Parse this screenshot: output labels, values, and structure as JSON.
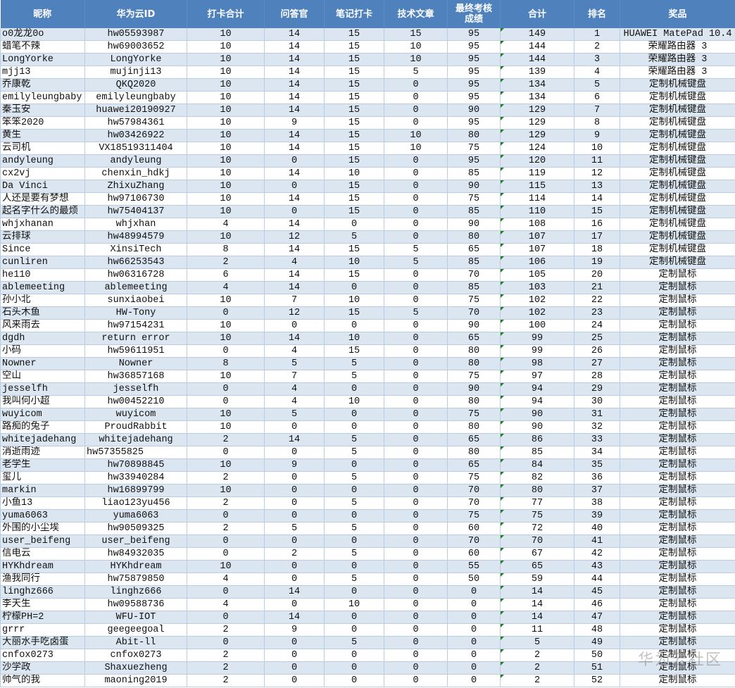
{
  "headers": [
    "昵称",
    "华为云ID",
    "打卡合计",
    "问答官",
    "笔记打卡",
    "技术文章",
    "最终考核\n成绩",
    "合计",
    "排名",
    "奖品"
  ],
  "colors": {
    "header_bg": "#4F81BD",
    "stripe": "#DCE6F1",
    "marker": "#1e7b1e"
  },
  "rows": [
    [
      "o0龙龙0o",
      "hw05593987",
      "10",
      "14",
      "15",
      "15",
      "95",
      "149",
      "1",
      "HUAWEI MatePad 10.4"
    ],
    [
      "蜡笔不辣",
      "hw69003652",
      "10",
      "14",
      "15",
      "10",
      "95",
      "144",
      "2",
      "荣耀路由器 3"
    ],
    [
      "LongYorke",
      "LongYorke",
      "10",
      "14",
      "15",
      "10",
      "95",
      "144",
      "3",
      "荣耀路由器 3"
    ],
    [
      "mjj13",
      "mujinji13",
      "10",
      "14",
      "15",
      "5",
      "95",
      "139",
      "4",
      "荣耀路由器 3"
    ],
    [
      "乔康乾",
      "QKQ2020",
      "10",
      "14",
      "15",
      "0",
      "95",
      "134",
      "5",
      "定制机械键盘"
    ],
    [
      "emilyleungbaby",
      "emilyleungbaby",
      "10",
      "14",
      "15",
      "0",
      "95",
      "134",
      "6",
      "定制机械键盘"
    ],
    [
      "秦玉安",
      "huawei20190927",
      "10",
      "14",
      "15",
      "0",
      "90",
      "129",
      "7",
      "定制机械键盘"
    ],
    [
      "笨笨2020",
      "hw57984361",
      "10",
      "9",
      "15",
      "0",
      "95",
      "129",
      "8",
      "定制机械键盘"
    ],
    [
      "黄生",
      "hw03426922",
      "10",
      "14",
      "15",
      "10",
      "80",
      "129",
      "9",
      "定制机械键盘"
    ],
    [
      "云司机",
      "VX18519311404",
      "10",
      "14",
      "15",
      "10",
      "75",
      "124",
      "10",
      "定制机械键盘"
    ],
    [
      "andyleung",
      "andyleung",
      "10",
      "0",
      "15",
      "0",
      "95",
      "120",
      "11",
      "定制机械键盘"
    ],
    [
      "cx2vj",
      "chenxin_hdkj",
      "10",
      "14",
      "10",
      "0",
      "85",
      "119",
      "12",
      "定制机械键盘"
    ],
    [
      "Da Vinci",
      "ZhixuZhang",
      "10",
      "0",
      "15",
      "0",
      "90",
      "115",
      "13",
      "定制机械键盘"
    ],
    [
      "人还是要有梦想",
      "hw97106730",
      "10",
      "14",
      "15",
      "0",
      "75",
      "114",
      "14",
      "定制机械键盘"
    ],
    [
      "起名字什么的最烦",
      "hw75404137",
      "10",
      "0",
      "15",
      "0",
      "85",
      "110",
      "15",
      "定制机械键盘"
    ],
    [
      "whjxhanan",
      "whjxhan",
      "4",
      "14",
      "0",
      "0",
      "90",
      "108",
      "16",
      "定制机械键盘"
    ],
    [
      "云排球",
      "hw48994579",
      "10",
      "12",
      "5",
      "0",
      "80",
      "107",
      "17",
      "定制机械键盘"
    ],
    [
      "Since",
      "XinsiTech",
      "8",
      "14",
      "15",
      "5",
      "65",
      "107",
      "18",
      "定制机械键盘"
    ],
    [
      "cunliren",
      "hw66253543",
      "2",
      "4",
      "10",
      "5",
      "85",
      "106",
      "19",
      "定制机械键盘"
    ],
    [
      "he110",
      "hw06316728",
      "6",
      "14",
      "15",
      "0",
      "70",
      "105",
      "20",
      "定制鼠标"
    ],
    [
      "ablemeeting",
      "ablemeeting",
      "4",
      "14",
      "0",
      "0",
      "85",
      "103",
      "21",
      "定制鼠标"
    ],
    [
      "孙小北",
      "sunxiaobei",
      "10",
      "7",
      "10",
      "0",
      "75",
      "102",
      "22",
      "定制鼠标"
    ],
    [
      "石头木鱼",
      "HW-Tony",
      "0",
      "12",
      "15",
      "5",
      "70",
      "102",
      "23",
      "定制鼠标"
    ],
    [
      "风来雨去",
      "hw97154231",
      "10",
      "0",
      "0",
      "0",
      "90",
      "100",
      "24",
      "定制鼠标"
    ],
    [
      "dgdh",
      "return error",
      "10",
      "14",
      "10",
      "0",
      "65",
      "99",
      "25",
      "定制鼠标"
    ],
    [
      "小码",
      "hw59611951",
      "0",
      "4",
      "15",
      "0",
      "80",
      "99",
      "26",
      "定制鼠标"
    ],
    [
      "Nowner",
      "Nowner",
      "8",
      "5",
      "5",
      "0",
      "80",
      "98",
      "27",
      "定制鼠标"
    ],
    [
      "空山",
      "hw36857168",
      "10",
      "7",
      "5",
      "0",
      "75",
      "97",
      "28",
      "定制鼠标"
    ],
    [
      "jesselfh",
      "jesselfh",
      "0",
      "4",
      "0",
      "0",
      "90",
      "94",
      "29",
      "定制鼠标"
    ],
    [
      "我叫何小超",
      "hw00452210",
      "0",
      "4",
      "10",
      "0",
      "80",
      "94",
      "30",
      "定制鼠标"
    ],
    [
      "wuyicom",
      "wuyicom",
      "10",
      "5",
      "0",
      "0",
      "75",
      "90",
      "31",
      "定制鼠标"
    ],
    [
      "路痴的兔子",
      "ProudRabbit",
      "10",
      "0",
      "0",
      "0",
      "80",
      "90",
      "32",
      "定制鼠标"
    ],
    [
      "whitejadehang",
      "whitejadehang",
      "2",
      "14",
      "5",
      "0",
      "65",
      "86",
      "33",
      "定制鼠标"
    ],
    [
      "消逝雨迹",
      "hw57355825",
      "0",
      "0",
      "5",
      "0",
      "80",
      "85",
      "34",
      "定制鼠标"
    ],
    [
      "老学生",
      "hw70898845",
      "10",
      "9",
      "0",
      "0",
      "65",
      "84",
      "35",
      "定制鼠标"
    ],
    [
      "玺儿",
      "hw33940284",
      "2",
      "0",
      "5",
      "0",
      "75",
      "82",
      "36",
      "定制鼠标"
    ],
    [
      "markin",
      "hw16899799",
      "10",
      "0",
      "0",
      "0",
      "70",
      "80",
      "37",
      "定制鼠标"
    ],
    [
      "小鱼13",
      "liao123yu456",
      "2",
      "0",
      "5",
      "0",
      "70",
      "77",
      "38",
      "定制鼠标"
    ],
    [
      "yuma6063",
      "yuma6063",
      "0",
      "0",
      "0",
      "0",
      "75",
      "75",
      "39",
      "定制鼠标"
    ],
    [
      "外围的小尘埃",
      "hw90509325",
      "2",
      "5",
      "5",
      "0",
      "60",
      "72",
      "40",
      "定制鼠标"
    ],
    [
      "user_beifeng",
      "user_beifeng",
      "0",
      "0",
      "0",
      "0",
      "70",
      "70",
      "41",
      "定制鼠标"
    ],
    [
      "信电云",
      "hw84932035",
      "0",
      "2",
      "5",
      "0",
      "60",
      "67",
      "42",
      "定制鼠标"
    ],
    [
      "HYKhdream",
      "HYKhdream",
      "10",
      "0",
      "0",
      "0",
      "55",
      "65",
      "43",
      "定制鼠标"
    ],
    [
      "渔我同行",
      "hw75879850",
      "4",
      "0",
      "5",
      "0",
      "50",
      "59",
      "44",
      "定制鼠标"
    ],
    [
      "linghz666",
      "linghz666",
      "0",
      "14",
      "0",
      "0",
      "0",
      "14",
      "45",
      "定制鼠标"
    ],
    [
      "李天生",
      "hw09588736",
      "4",
      "0",
      "10",
      "0",
      "0",
      "14",
      "46",
      "定制鼠标"
    ],
    [
      "柠檬PH=2",
      "WFU-IOT",
      "0",
      "14",
      "0",
      "0",
      "0",
      "14",
      "47",
      "定制鼠标"
    ],
    [
      "grrr",
      "geegeegoal",
      "2",
      "9",
      "0",
      "0",
      "0",
      "11",
      "48",
      "定制鼠标"
    ],
    [
      "大丽水手吃卤蛋",
      "Abit-ll",
      "0",
      "0",
      "5",
      "0",
      "0",
      "5",
      "49",
      "定制鼠标"
    ],
    [
      "cnfox0273",
      "cnfox0273",
      "2",
      "0",
      "0",
      "0",
      "0",
      "2",
      "50",
      "定制鼠标"
    ],
    [
      "沙学政",
      "Shaxuezheng",
      "2",
      "0",
      "0",
      "0",
      "0",
      "2",
      "51",
      "定制鼠标"
    ],
    [
      "帅气的我",
      "maoning2019",
      "2",
      "0",
      "0",
      "0",
      "0",
      "2",
      "52",
      "定制鼠标"
    ]
  ],
  "watermark": "华为云社区"
}
